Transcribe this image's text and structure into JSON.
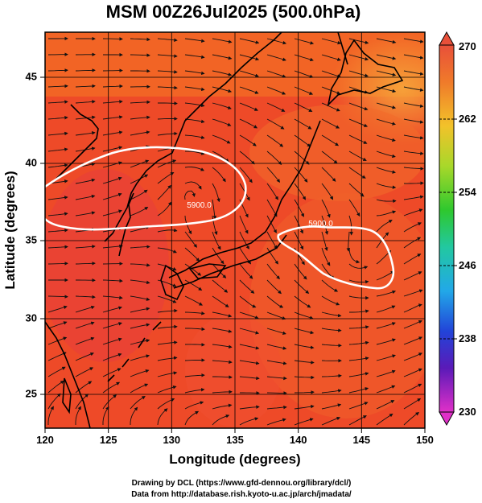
{
  "title": "MSM 00Z26Jul2025 (500.0hPa)",
  "axes": {
    "xlabel": "Longitude (degrees)",
    "ylabel": "Latitude  (degrees)",
    "xlim": [
      120,
      150
    ],
    "ylim": [
      22.5,
      48
    ],
    "xticks": [
      "120",
      "125",
      "130",
      "135",
      "140",
      "145",
      "150"
    ],
    "yticks": [
      "25",
      "30",
      "35",
      "40",
      "45"
    ]
  },
  "colorbar": {
    "min": 230,
    "max": 270,
    "ticks": [
      "270",
      "262",
      "254",
      "246",
      "238",
      "230"
    ]
  },
  "contours": [
    {
      "label": "5900.0",
      "lon": 131.2,
      "lat": 36.7
    },
    {
      "label": "5900.0",
      "lon": 140.8,
      "lat": 35.5
    }
  ],
  "credits": {
    "line1": "Drawing by DCL (https://www.gfd-dennou.org/library/dcl/)",
    "line2": "Data from http://database.rish.kyoto-u.ac.jp/arch/jmadata/"
  },
  "colors": {
    "field_main": "#ee4422",
    "field_warm": "#f25a1e",
    "field_cool": "#f07a2a",
    "contour": "#ffffff",
    "coast": "#000000"
  }
}
